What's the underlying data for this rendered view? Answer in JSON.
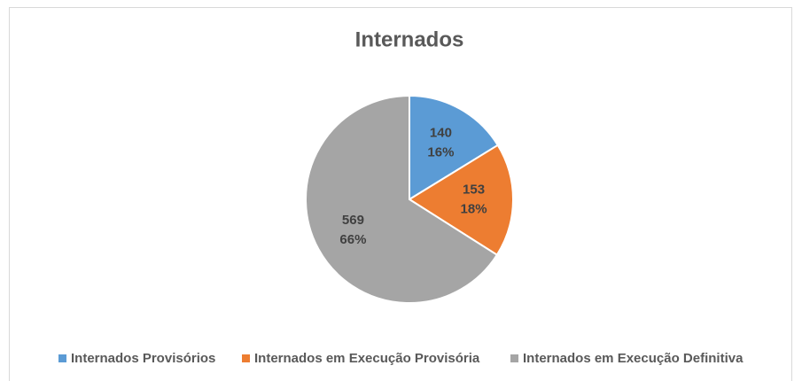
{
  "chart_data": {
    "type": "pie",
    "title": "Internados",
    "categories": [
      "Internados Provisórios",
      "Internados em Execução Provisória",
      "Internados em Execução Definitiva"
    ],
    "values": [
      140,
      153,
      569
    ],
    "percent_labels": [
      "16%",
      "18%",
      "66%"
    ],
    "colors": [
      "#5b9bd5",
      "#ed7d31",
      "#a5a5a5"
    ],
    "legend": "bottom"
  }
}
